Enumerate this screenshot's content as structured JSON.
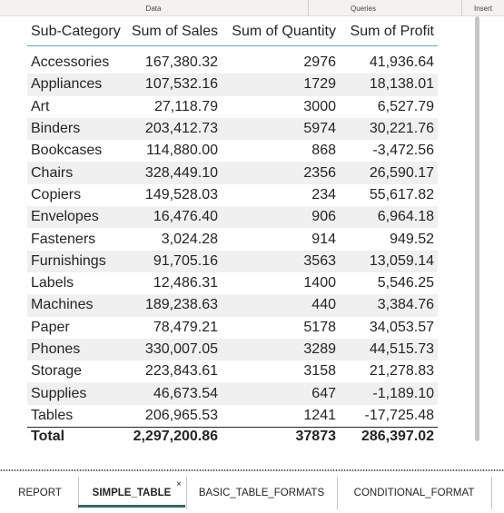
{
  "ribbon": {
    "groups": [
      "Data",
      "Queries",
      "Insert"
    ]
  },
  "table": {
    "headers": [
      "Sub-Category",
      "Sum of Sales",
      "Sum of Quantity",
      "Sum of Profit"
    ],
    "rows": [
      [
        "Accessories",
        "167,380.32",
        "2976",
        "41,936.64"
      ],
      [
        "Appliances",
        "107,532.16",
        "1729",
        "18,138.01"
      ],
      [
        "Art",
        "27,118.79",
        "3000",
        "6,527.79"
      ],
      [
        "Binders",
        "203,412.73",
        "5974",
        "30,221.76"
      ],
      [
        "Bookcases",
        "114,880.00",
        "868",
        "-3,472.56"
      ],
      [
        "Chairs",
        "328,449.10",
        "2356",
        "26,590.17"
      ],
      [
        "Copiers",
        "149,528.03",
        "234",
        "55,617.82"
      ],
      [
        "Envelopes",
        "16,476.40",
        "906",
        "6,964.18"
      ],
      [
        "Fasteners",
        "3,024.28",
        "914",
        "949.52"
      ],
      [
        "Furnishings",
        "91,705.16",
        "3563",
        "13,059.14"
      ],
      [
        "Labels",
        "12,486.31",
        "1400",
        "5,546.25"
      ],
      [
        "Machines",
        "189,238.63",
        "440",
        "3,384.76"
      ],
      [
        "Paper",
        "78,479.21",
        "5178",
        "34,053.57"
      ],
      [
        "Phones",
        "330,007.05",
        "3289",
        "44,515.73"
      ],
      [
        "Storage",
        "223,843.61",
        "3158",
        "21,278.83"
      ],
      [
        "Supplies",
        "46,673.54",
        "647",
        "-1,189.10"
      ],
      [
        "Tables",
        "206,965.53",
        "1241",
        "-17,725.48"
      ]
    ],
    "total": [
      "Total",
      "2,297,200.86",
      "37873",
      "286,397.02"
    ]
  },
  "tabs": [
    {
      "label": "REPORT"
    },
    {
      "label": "SIMPLE_TABLE",
      "active": true
    },
    {
      "label": "BASIC_TABLE_FORMATS"
    },
    {
      "label": "CONDITIONAL_FORMAT"
    }
  ],
  "tab_close_symbol": "×"
}
